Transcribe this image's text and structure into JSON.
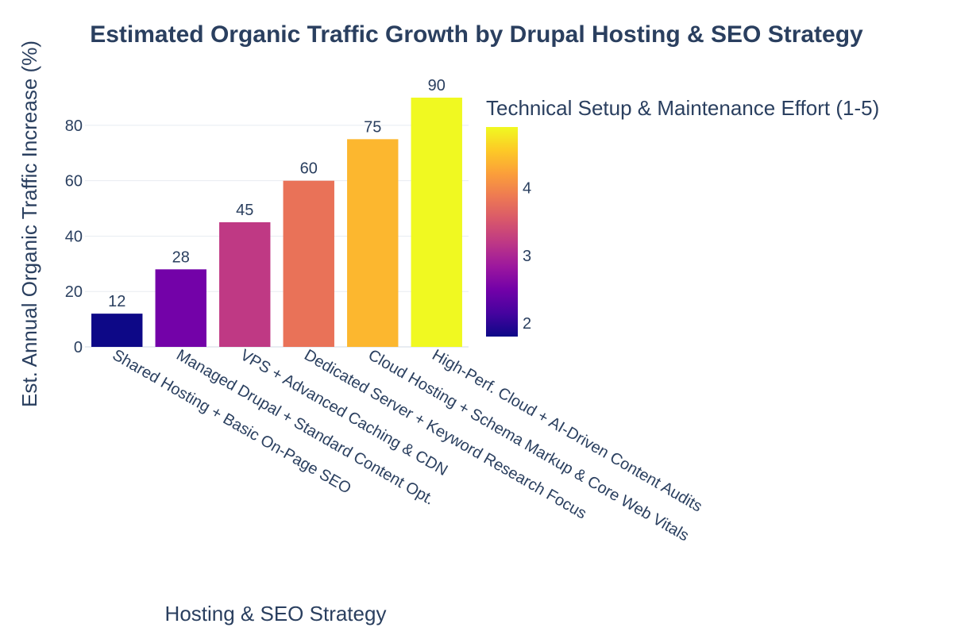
{
  "chart_data": {
    "type": "bar",
    "title": "Estimated Organic Traffic Growth by Drupal Hosting & SEO Strategy",
    "xlabel": "Hosting & SEO Strategy",
    "ylabel": "Est. Annual Organic Traffic Increase (%)",
    "categories": [
      "Shared Hosting + Basic On-Page SEO",
      "Managed Drupal + Standard Content Opt.",
      "VPS + Advanced Caching & CDN",
      "Dedicated Server + Keyword Research Focus",
      "Cloud Hosting + Schema Markup & Core Web Vitals",
      "High-Perf. Cloud + AI-Driven Content Audits"
    ],
    "values": [
      12,
      28,
      45,
      60,
      75,
      90
    ],
    "data_labels": [
      "12",
      "28",
      "45",
      "60",
      "75",
      "90"
    ],
    "color_values": [
      1.8,
      2.5,
      3.2,
      3.8,
      4.4,
      4.9
    ],
    "colorscale": "Plasma",
    "colorbar": {
      "title": "Technical Setup & Maintenance Effort (1-5)",
      "range": [
        1.8,
        4.9
      ],
      "ticks": [
        2,
        3,
        4
      ],
      "tick_labels": [
        "2",
        "3",
        "4"
      ]
    },
    "ylim": [
      0,
      92
    ],
    "y_ticks": [
      0,
      20,
      40,
      60,
      80
    ],
    "y_tick_labels": [
      "0",
      "20",
      "40",
      "60",
      "80"
    ],
    "grid": true,
    "legend": "none"
  }
}
